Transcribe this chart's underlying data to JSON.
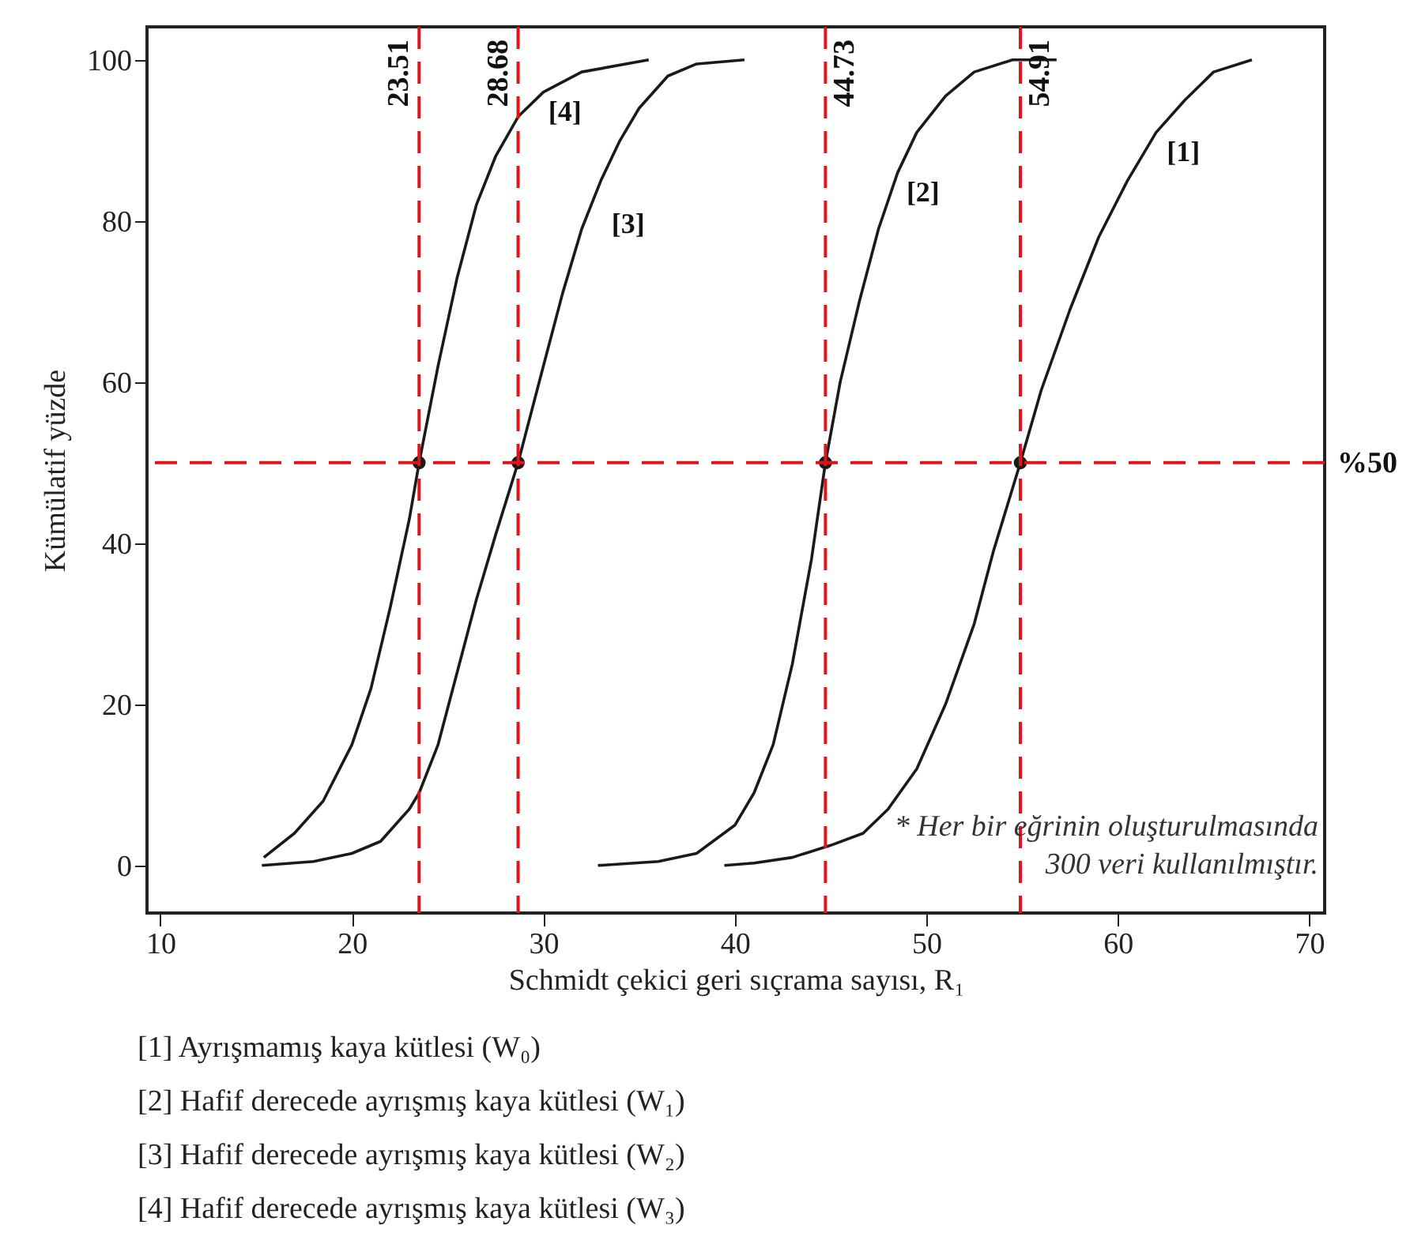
{
  "chart_data": {
    "type": "line",
    "xlabel": "Schmidt çekici geri sıçrama sayısı, R₁",
    "ylabel": "Kümülatif yüzde",
    "xlim": [
      9.3,
      70.8
    ],
    "ylim": [
      -5.9,
      104.1
    ],
    "xticks": [
      10,
      20,
      30,
      40,
      50,
      60,
      70
    ],
    "yticks": [
      0,
      20,
      40,
      60,
      80,
      100
    ],
    "grid": false,
    "marker": "none",
    "line_style": "solid",
    "series": [
      {
        "color": "#1a1a1a",
        "x": [
          39.45,
          41,
          43,
          45,
          46.7,
          48,
          49.5,
          51,
          52.5,
          53.5,
          54.91,
          56,
          57.5,
          59,
          60.5,
          62,
          63.5,
          65,
          67
        ],
        "values": [
          0,
          0.3,
          1,
          2.5,
          4,
          7,
          12,
          20,
          30,
          39,
          50,
          59,
          69,
          78,
          85,
          91,
          95,
          98.5,
          100
        ]
      },
      {
        "color": "#1a1a1a",
        "x": [
          32.85,
          36,
          38,
          40,
          41,
          42,
          43,
          44,
          44.73,
          45.5,
          46.5,
          47.5,
          48.5,
          49.5,
          51,
          52.5,
          54.5,
          56.8
        ],
        "values": [
          0,
          0.5,
          1.5,
          5,
          9,
          15,
          25,
          38,
          50,
          60,
          70,
          79,
          86,
          91,
          95.5,
          98.5,
          100,
          100
        ]
      },
      {
        "color": "#1a1a1a",
        "x": [
          15.3,
          18,
          20,
          21.5,
          23,
          23.51,
          24.5,
          25.5,
          26.5,
          27.5,
          28.68,
          30,
          31,
          32,
          33,
          34,
          35,
          36.5,
          38,
          40.5
        ],
        "values": [
          0,
          0.5,
          1.5,
          3,
          7,
          9,
          15,
          24,
          33,
          41,
          50,
          62,
          71,
          79,
          85,
          90,
          94,
          98,
          99.5,
          100
        ]
      },
      {
        "color": "#1a1a1a",
        "x": [
          15.4,
          17,
          18.5,
          20,
          21,
          22,
          23,
          23.51,
          24.5,
          25.5,
          26.5,
          27.5,
          28.7,
          30,
          32,
          35.5
        ],
        "values": [
          1,
          4,
          8,
          15,
          22,
          32,
          43,
          50,
          62,
          73,
          82,
          88,
          93,
          96,
          98.5,
          100
        ]
      },
      {
        "type": "scatter",
        "marker": "circle",
        "color": "#1a1a1a",
        "x": [
          23.51,
          28.68,
          44.73,
          54.91
        ],
        "values": [
          50,
          50,
          50,
          50
        ]
      }
    ],
    "ref_lines": [
      {
        "axis": "x",
        "value": 23.51,
        "label": "23.51",
        "color": "#e0151b",
        "line_style": "dashed"
      },
      {
        "axis": "x",
        "value": 28.68,
        "label": "28.68",
        "color": "#e0151b",
        "line_style": "dashed"
      },
      {
        "axis": "x",
        "value": 44.73,
        "label": "44.73",
        "color": "#e0151b",
        "line_style": "dashed"
      },
      {
        "axis": "x",
        "value": 54.91,
        "label": "54.91",
        "color": "#e0151b",
        "line_style": "dashed"
      },
      {
        "axis": "y",
        "value": 50,
        "label": "%50",
        "color": "#e0151b",
        "line_style": "dashed"
      }
    ],
    "annotations": [
      {
        "text": "[1]",
        "x": 61.9,
        "y": 91
      },
      {
        "text": "[2]",
        "x": 48.3,
        "y": 86
      },
      {
        "text": "[3]",
        "x": 32.9,
        "y": 82
      },
      {
        "text": "[4]",
        "x": 29.6,
        "y": 96
      },
      "* Her bir eğrinin oluşturulmasında\n300 veri kullanılmıştır.",
      "[1] Ayrışmamış kaya kütlesi (W₀)",
      "[2] Hafif derecede ayrışmış kaya kütlesi (W₁)",
      "[3] Hafif derecede ayrışmış kaya kütlesi (W₂)",
      "[4] Hafif derecede ayrışmış kaya kütlesi (W₃)"
    ]
  }
}
